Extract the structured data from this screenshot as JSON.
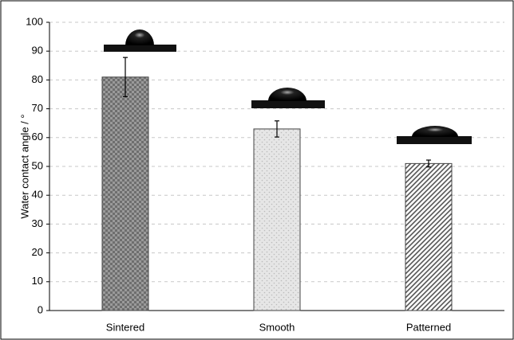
{
  "chart_data": {
    "type": "bar",
    "y_label": "Water contact angle / °",
    "categories": [
      "Sintered",
      "Smooth",
      "Patterned"
    ],
    "values": [
      81,
      63,
      51
    ],
    "errors": [
      6.8,
      2.8,
      1.2
    ],
    "colors": [
      "#6e6e6e",
      "#e6e6e6",
      "#555555"
    ],
    "ylim": [
      0,
      100
    ],
    "yticks": [
      0,
      10,
      20,
      30,
      40,
      50,
      60,
      70,
      80,
      90,
      100
    ],
    "grid": true
  }
}
